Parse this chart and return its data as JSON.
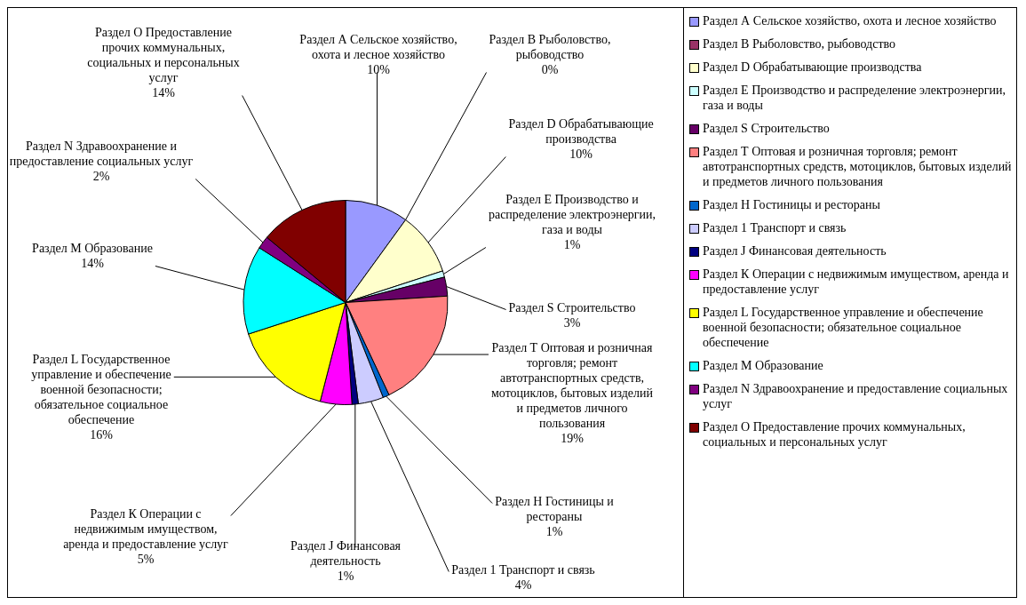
{
  "chart_data": {
    "type": "pie",
    "categories": [
      "Раздел А Сельское хозяйство, охота и лесное хозяйство",
      "Раздел В Рыболовство, рыбоводство",
      "Раздел D Обрабатывающие производства",
      "Раздел Е Производство и распределение электроэнергии, газа и воды",
      "Раздел S Строительство",
      "Раздел Т Оптовая и розничная торговля; ремонт автотранспортных средств, мотоциклов, бытовых изделий и предметов личного пользования",
      "Раздел Н Гостиницы и рестораны",
      "Раздел 1 Транспорт и связь",
      "Раздел J Финансовая деятельность",
      "Раздел К Операции с недвижимым имуществом, аренда и предоставление услуг",
      "Раздел L Государственное управление и обеспечение военной безопасности; обязательное социальное обеспечение",
      "Раздел М Образование",
      "Раздел N Здравоохранение и предоставление социальных услуг",
      "Раздел О Предоставление прочих коммунальных, социальных и персональных услуг"
    ],
    "values": [
      10,
      0,
      10,
      1,
      3,
      19,
      1,
      4,
      1,
      5,
      16,
      14,
      2,
      14
    ],
    "value_labels": [
      "10%",
      "0%",
      "10%",
      "1%",
      "3%",
      "19%",
      "1%",
      "4%",
      "1%",
      "5%",
      "16%",
      "14%",
      "2%",
      "14%"
    ],
    "colors": [
      "#9999ff",
      "#993366",
      "#ffffcc",
      "#ccffff",
      "#660066",
      "#ff8080",
      "#0066cc",
      "#ccccff",
      "#000080",
      "#ff00ff",
      "#ffff00",
      "#00ffff",
      "#800080",
      "#800000"
    ],
    "legend": "right"
  }
}
